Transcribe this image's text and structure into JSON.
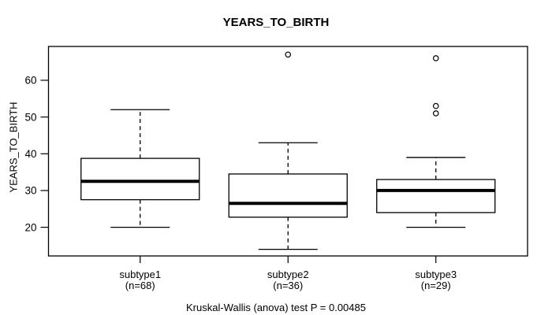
{
  "chart_data": {
    "type": "boxplot",
    "title": "YEARS_TO_BIRTH",
    "ylabel": "YEARS_TO_BIRTH",
    "caption": "Kruskal-Wallis (anova) test P = 0.00485",
    "y_ticks": [
      20,
      30,
      40,
      50,
      60
    ],
    "ylim": [
      12.2,
      69.2
    ],
    "grid": false,
    "legend": null,
    "groups": [
      {
        "label": "subtype1",
        "sublabel": "(n=68)",
        "n": 68,
        "whisker_low": 20,
        "q1": 27.5,
        "median": 32.5,
        "q3": 38.75,
        "whisker_high": 52,
        "outliers": []
      },
      {
        "label": "subtype2",
        "sublabel": "(n=36)",
        "n": 36,
        "whisker_low": 14,
        "q1": 22.75,
        "median": 26.5,
        "q3": 34.5,
        "whisker_high": 43,
        "outliers": [
          67
        ]
      },
      {
        "label": "subtype3",
        "sublabel": "(n=29)",
        "n": 29,
        "whisker_low": 20,
        "q1": 24,
        "median": 30,
        "q3": 33,
        "whisker_high": 39,
        "outliers": [
          51,
          53,
          66
        ]
      }
    ]
  },
  "colors": {
    "line": "#000000",
    "median": "#000000",
    "background": "#ffffff"
  }
}
